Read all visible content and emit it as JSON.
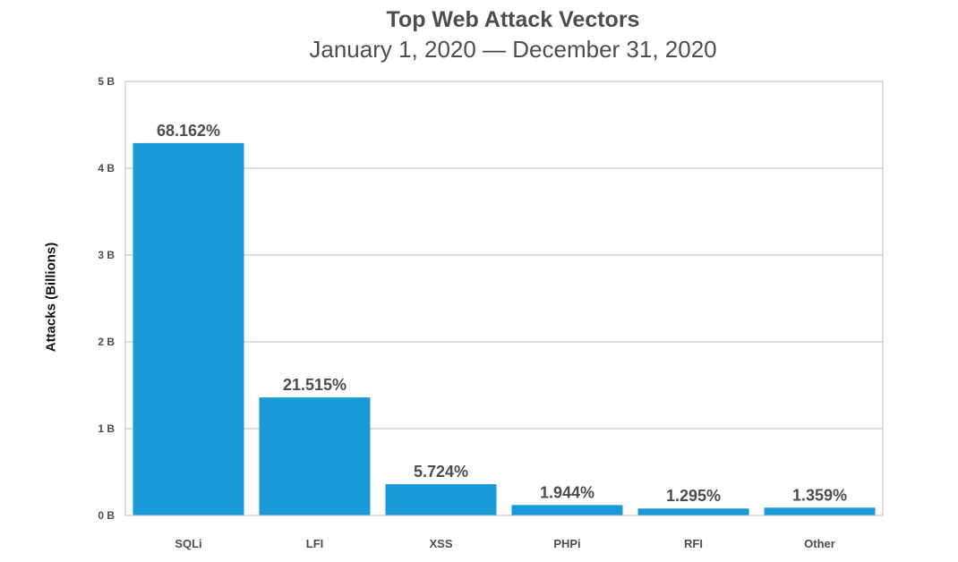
{
  "chart_data": {
    "type": "bar",
    "title": "Top Web Attack Vectors",
    "subtitle": "January 1, 2020 — December 31, 2020",
    "xlabel": "",
    "ylabel": "Attacks (Billions)",
    "categories": [
      "SQLi",
      "LFI",
      "XSS",
      "PHPi",
      "RFI",
      "Other"
    ],
    "values": [
      4.29,
      1.36,
      0.36,
      0.12,
      0.08,
      0.09
    ],
    "data_labels": [
      "68.162%",
      "21.515%",
      "5.724%",
      "1.944%",
      "1.295%",
      "1.359%"
    ],
    "ylim": [
      0,
      5
    ],
    "yticks": [
      0,
      1,
      2,
      3,
      4,
      5
    ],
    "ytick_labels": [
      "0 B",
      "1 B",
      "2 B",
      "3 B",
      "4 B",
      "5 B"
    ],
    "grid": true,
    "legend": "none",
    "bar_color": "#1b9ad9"
  }
}
